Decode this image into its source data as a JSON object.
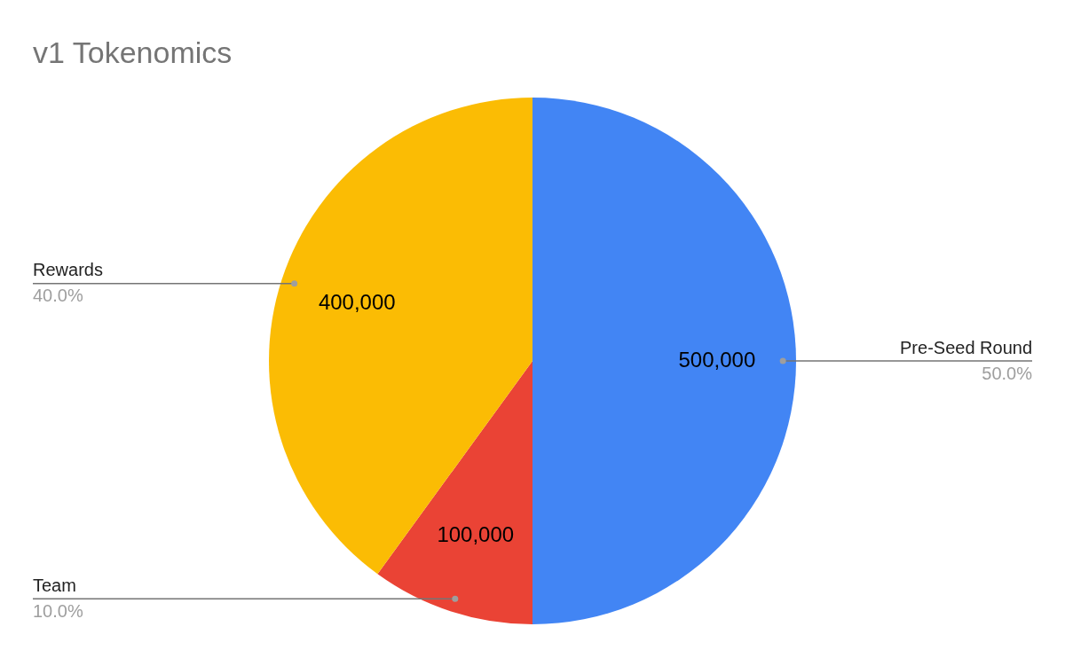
{
  "chart_data": {
    "type": "pie",
    "title": "v1 Tokenomics",
    "categories": [
      "Pre-Seed Round",
      "Team",
      "Rewards"
    ],
    "values": [
      500000,
      100000,
      400000
    ],
    "colors": [
      "#4285f4",
      "#ea4335",
      "#fbbc04"
    ],
    "value_labels": [
      "500,000",
      "100,000",
      "400,000"
    ],
    "annotations": [
      {
        "text": "50.0%",
        "x": "Pre-Seed Round"
      },
      {
        "text": "10.0%",
        "x": "Team"
      },
      {
        "text": "40.0%",
        "x": "Rewards"
      }
    ]
  }
}
